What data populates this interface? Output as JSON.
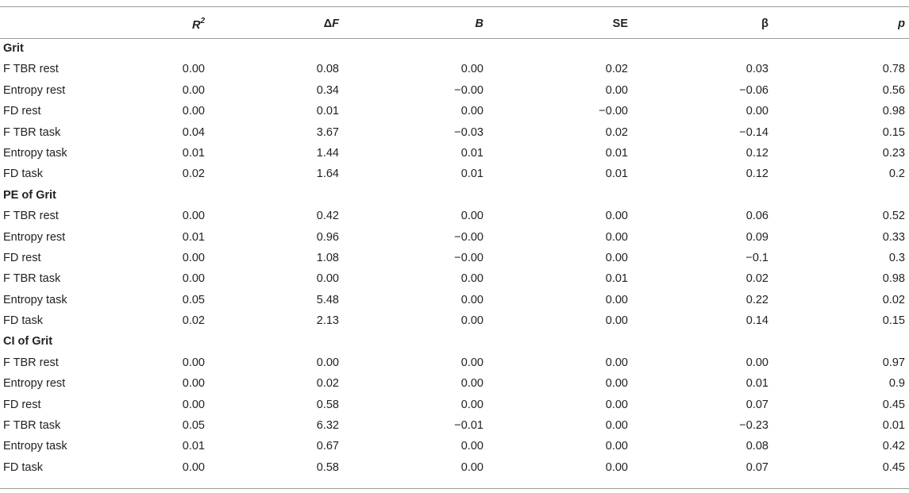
{
  "headers": {
    "r2_base": "R",
    "r2_sup": "2",
    "delta_f_symbol": "Δ",
    "delta_f_letter": "F",
    "b": "B",
    "se": "SE",
    "beta": "β",
    "p": "p"
  },
  "groups": [
    {
      "label": "Grit",
      "rows": [
        {
          "label": "F TBR rest",
          "r2": "0.00",
          "df": "0.08",
          "b": "0.00",
          "se": "0.02",
          "beta": "0.03",
          "p": "0.78"
        },
        {
          "label": "Entropy rest",
          "r2": "0.00",
          "df": "0.34",
          "b": "−0.00",
          "se": "0.00",
          "beta": "−0.06",
          "p": "0.56"
        },
        {
          "label": "FD rest",
          "r2": "0.00",
          "df": "0.01",
          "b": "0.00",
          "se": "−0.00",
          "beta": "0.00",
          "p": "0.98"
        },
        {
          "label": "F TBR task",
          "r2": "0.04",
          "df": "3.67",
          "b": "−0.03",
          "se": "0.02",
          "beta": "−0.14",
          "p": "0.15"
        },
        {
          "label": "Entropy task",
          "r2": "0.01",
          "df": "1.44",
          "b": "0.01",
          "se": "0.01",
          "beta": "0.12",
          "p": "0.23"
        },
        {
          "label": "FD task",
          "r2": "0.02",
          "df": "1.64",
          "b": "0.01",
          "se": "0.01",
          "beta": "0.12",
          "p": "0.2"
        }
      ]
    },
    {
      "label": "PE of Grit",
      "rows": [
        {
          "label": "F TBR rest",
          "r2": "0.00",
          "df": "0.42",
          "b": "0.00",
          "se": "0.00",
          "beta": "0.06",
          "p": "0.52"
        },
        {
          "label": "Entropy rest",
          "r2": "0.01",
          "df": "0.96",
          "b": "−0.00",
          "se": "0.00",
          "beta": "0.09",
          "p": "0.33"
        },
        {
          "label": "FD rest",
          "r2": "0.00",
          "df": "1.08",
          "b": "−0.00",
          "se": "0.00",
          "beta": "−0.1",
          "p": "0.3"
        },
        {
          "label": "F TBR task",
          "r2": "0.00",
          "df": "0.00",
          "b": "0.00",
          "se": "0.01",
          "beta": "0.02",
          "p": "0.98"
        },
        {
          "label": "Entropy task",
          "r2": "0.05",
          "df": "5.48",
          "b": "0.00",
          "se": "0.00",
          "beta": "0.22",
          "p": "0.02"
        },
        {
          "label": "FD task",
          "r2": "0.02",
          "df": "2.13",
          "b": "0.00",
          "se": "0.00",
          "beta": "0.14",
          "p": "0.15"
        }
      ]
    },
    {
      "label": "CI of Grit",
      "rows": [
        {
          "label": "F TBR rest",
          "r2": "0.00",
          "df": "0.00",
          "b": "0.00",
          "se": "0.00",
          "beta": "0.00",
          "p": "0.97"
        },
        {
          "label": "Entropy rest",
          "r2": "0.00",
          "df": "0.02",
          "b": "0.00",
          "se": "0.00",
          "beta": "0.01",
          "p": "0.9"
        },
        {
          "label": "FD rest",
          "r2": "0.00",
          "df": "0.58",
          "b": "0.00",
          "se": "0.00",
          "beta": "0.07",
          "p": "0.45"
        },
        {
          "label": "F TBR task",
          "r2": "0.05",
          "df": "6.32",
          "b": "−0.01",
          "se": "0.00",
          "beta": "−0.23",
          "p": "0.01"
        },
        {
          "label": "Entropy task",
          "r2": "0.01",
          "df": "0.67",
          "b": "0.00",
          "se": "0.00",
          "beta": "0.08",
          "p": "0.42"
        },
        {
          "label": "FD task",
          "r2": "0.00",
          "df": "0.58",
          "b": "0.00",
          "se": "0.00",
          "beta": "0.07",
          "p": "0.45"
        }
      ]
    }
  ]
}
